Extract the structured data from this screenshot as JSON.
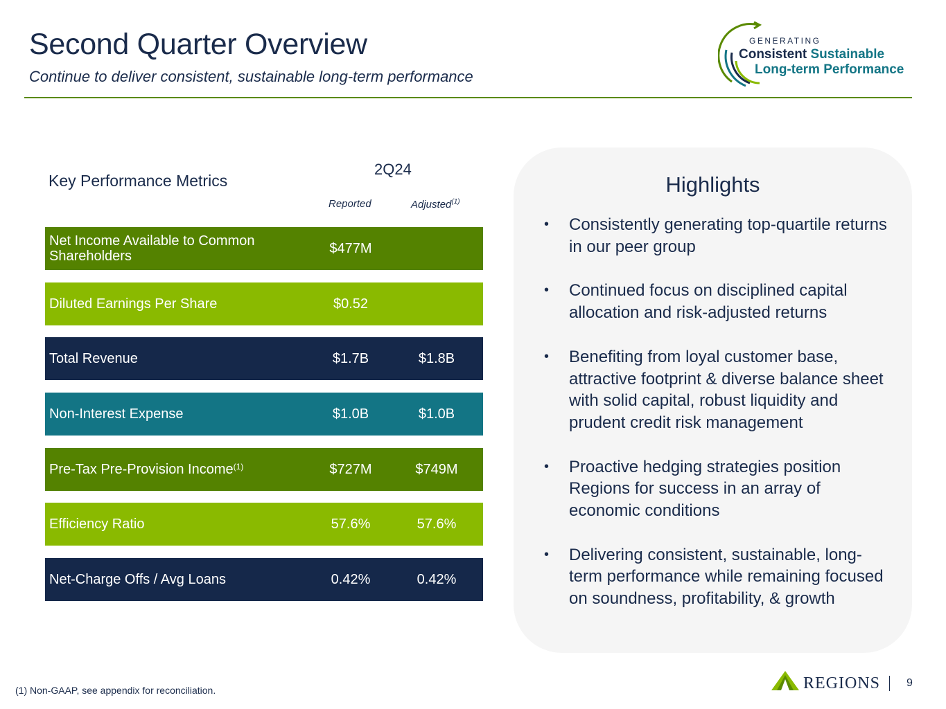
{
  "header": {
    "title": "Second Quarter Overview",
    "subtitle": "Continue to deliver consistent, sustainable long-term performance"
  },
  "logo": {
    "generating": "GENERATING",
    "consistent": "Consistent",
    "sustainable": "Sustainable",
    "long_term": "Long-term Performance"
  },
  "metrics": {
    "heading": "Key Performance Metrics",
    "period": "2Q24",
    "col_reported": "Reported",
    "col_adjusted": "Adjusted",
    "col_adjusted_note": "(1)",
    "rows": [
      {
        "label": "Net Income Available to Common Shareholders",
        "note": "",
        "reported": "$477M",
        "adjusted": "",
        "color": "#548200"
      },
      {
        "label": "Diluted Earnings Per Share",
        "note": "",
        "reported": "$0.52",
        "adjusted": "",
        "color": "#8aba00"
      },
      {
        "label": "Total Revenue",
        "note": "",
        "reported": "$1.7B",
        "adjusted": "$1.8B",
        "color": "#15284a"
      },
      {
        "label": "Non-Interest Expense",
        "note": "",
        "reported": "$1.0B",
        "adjusted": "$1.0B",
        "color": "#137585"
      },
      {
        "label": "Pre-Tax Pre-Provision Income",
        "note": "(1)",
        "reported": "$727M",
        "adjusted": "$749M",
        "color": "#548200"
      },
      {
        "label": "Efficiency Ratio",
        "note": "",
        "reported": "57.6%",
        "adjusted": "57.6%",
        "color": "#8aba00"
      },
      {
        "label": "Net-Charge Offs / Avg Loans",
        "note": "",
        "reported": "0.42%",
        "adjusted": "0.42%",
        "color": "#15284a"
      }
    ]
  },
  "highlights": {
    "title": "Highlights",
    "items": [
      "Consistently generating top-quartile returns  in our peer group",
      "Continued focus on disciplined capital allocation and risk-adjusted returns",
      "Benefiting from loyal customer base, attractive footprint & diverse balance sheet with solid capital, robust liquidity and prudent credit risk management",
      "Proactive hedging strategies position Regions for success in an array of economic conditions",
      "Delivering consistent, sustainable, long-term performance while remaining focused on soundness, profitability, & growth"
    ]
  },
  "footer": {
    "footnote": "(1) Non-GAAP, see appendix for reconciliation.",
    "brand": "REGIONS",
    "page": "9"
  }
}
